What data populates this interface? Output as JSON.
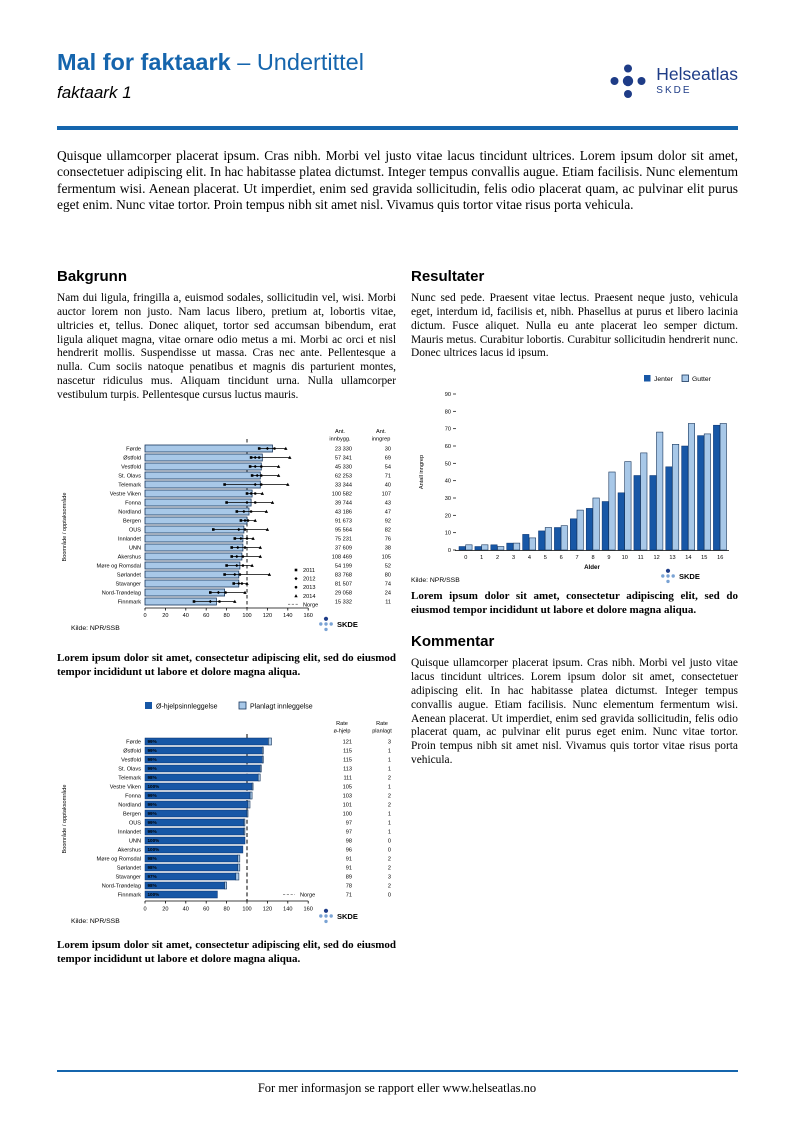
{
  "colors": {
    "accent_blue": "#1565ad",
    "logo_navy": "#1e3c87",
    "bar_dark": "#1757a6",
    "bar_light": "#a8c8e8",
    "bar_border": "#17365d",
    "skde_dot_light": "#7aa3d4"
  },
  "header": {
    "title": "Mal for faktaark",
    "subtitle": "– Undertittel",
    "subheading": "faktaark 1",
    "logo_name": "Helseatlas",
    "logo_org": "SKDE"
  },
  "skde_label": "SKDE",
  "intro": "Quisque ullamcorper placerat ipsum. Cras nibh. Morbi vel justo vitae lacus tincidunt ultrices. Lorem ipsum dolor sit amet, consectetuer adipiscing elit. In hac habitasse platea dictumst. Integer tempus convallis augue. Etiam facilisis. Nunc elementum fermentum wisi. Aenean placerat. Ut imperdiet, enim sed gravida sollicitudin, felis odio placerat quam, ac pulvinar elit purus eget enim. Nunc vitae tortor. Proin tempus nibh sit amet nisl. Vivamus quis tortor vitae risus porta vehicula.",
  "sections": {
    "bakgrunn": {
      "heading": "Bakgrunn",
      "body": "Nam dui ligula, fringilla a, euismod sodales, sollicitudin vel, wisi. Morbi auctor lorem non justo. Nam lacus libero, pretium at, lobortis vitae, ultricies et, tellus. Donec aliquet, tortor sed accumsan bibendum, erat ligula aliquet magna, vitae ornare odio metus a mi. Morbi ac orci et nisl hendrerit mollis. Suspendisse ut massa. Cras nec ante. Pellentesque a nulla. Cum sociis natoque penatibus et magnis dis parturient montes, nascetur ridiculus mus. Aliquam tincidunt urna. Nulla ullamcorper vestibulum turpis. Pellentesque cursus luctus mauris."
    },
    "resultater": {
      "heading": "Resultater",
      "body": "Nunc sed pede. Praesent vitae lectus. Praesent neque justo, vehicula eget, interdum id, facilisis et, nibh. Phasellus at purus et libero lacinia dictum. Fusce aliquet. Nulla eu ante placerat leo semper dictum. Mauris metus. Curabitur lobortis. Curabitur sollicitudin hendrerit nunc. Donec ultrices lacus id ipsum."
    },
    "kommentar": {
      "heading": "Kommentar",
      "body": "Quisque ullamcorper placerat ipsum. Cras nibh. Morbi vel justo vitae lacus tincidunt ultrices. Lorem ipsum dolor sit amet, consectetuer adipiscing elit. In hac habitasse platea dictumst. Integer tempus convallis augue. Etiam facilisis. Nunc elementum fermentum wisi. Aenean placerat. Ut imperdiet, enim sed gravida sollicitudin, felis odio placerat quam, ac pulvinar elit purus eget enim. Nunc vitae tortor. Proin tempus nibh sit amet nisl. Vivamus quis tortor vitae risus porta vehicula."
    }
  },
  "figures": {
    "fig1": {
      "caption": "Lorem ipsum dolor sit amet, consectetur adipiscing elit, sed do eiusmod tempor incididunt ut labore et dolore magna aliqua."
    },
    "fig2": {
      "caption": "Lorem ipsum dolor sit amet, consectetur adipiscing elit, sed do eiusmod tempor incididunt ut labore et dolore magna aliqua."
    },
    "fig3": {
      "caption": "Lorem ipsum dolor sit amet, consectetur adipiscing elit, sed do eiusmod tempor incididunt ut labore et dolore magna aliqua."
    }
  },
  "footer": {
    "text": "For mer informasjon se rapport eller www.helseatlas.no"
  },
  "chart_data": [
    {
      "id": "fig1",
      "type": "bar",
      "orientation": "horizontal",
      "ylabel": "Boområde / opptaksområde",
      "xlim": [
        0,
        160
      ],
      "xticks": [
        0,
        20,
        40,
        60,
        80,
        100,
        120,
        140,
        160
      ],
      "reference_line": {
        "label": "Norge",
        "value": 100
      },
      "legend": [
        "2011",
        "2012",
        "2013",
        "2014",
        "Norge"
      ],
      "table_headers": [
        [
          "Ant.",
          "innbygg."
        ],
        [
          "Ant.",
          "inngrep"
        ]
      ],
      "source": "Kilde: NPR/SSB",
      "rows": [
        {
          "label": "Førde",
          "value": 125,
          "year_points": [
            112,
            120,
            127,
            138
          ],
          "innbygg": "23 330",
          "inngrep": "30"
        },
        {
          "label": "Østfold",
          "value": 115,
          "year_points": [
            104,
            108,
            112,
            142
          ],
          "innbygg": "57 341",
          "inngrep": "69"
        },
        {
          "label": "Vestfold",
          "value": 114,
          "year_points": [
            103,
            108,
            114,
            131
          ],
          "innbygg": "45 330",
          "inngrep": "54"
        },
        {
          "label": "St. Olavs",
          "value": 113,
          "year_points": [
            105,
            110,
            114,
            131
          ],
          "innbygg": "62 253",
          "inngrep": "71"
        },
        {
          "label": "Telemark",
          "value": 113,
          "year_points": [
            78,
            108,
            114,
            140
          ],
          "innbygg": "33 344",
          "inngrep": "40"
        },
        {
          "label": "Vestre Viken",
          "value": 105,
          "year_points": [
            100,
            104,
            108,
            115
          ],
          "innbygg": "100 582",
          "inngrep": "107"
        },
        {
          "label": "Fonna",
          "value": 104,
          "year_points": [
            80,
            100,
            108,
            125
          ],
          "innbygg": "39 744",
          "inngrep": "43"
        },
        {
          "label": "Nordland",
          "value": 102,
          "year_points": [
            90,
            97,
            104,
            119
          ],
          "innbygg": "43 186",
          "inngrep": "47"
        },
        {
          "label": "Bergen",
          "value": 100,
          "year_points": [
            94,
            98,
            101,
            108
          ],
          "innbygg": "91 673",
          "inngrep": "92"
        },
        {
          "label": "OUS",
          "value": 97,
          "year_points": [
            67,
            92,
            98,
            120
          ],
          "innbygg": "95 564",
          "inngrep": "82"
        },
        {
          "label": "Innlandet",
          "value": 96,
          "year_points": [
            88,
            94,
            100,
            106
          ],
          "innbygg": "75 231",
          "inngrep": "76"
        },
        {
          "label": "UNN",
          "value": 96,
          "year_points": [
            85,
            91,
            98,
            113
          ],
          "innbygg": "37 609",
          "inngrep": "38"
        },
        {
          "label": "Akershus",
          "value": 95,
          "year_points": [
            85,
            90,
            96,
            113
          ],
          "innbygg": "108 469",
          "inngrep": "105"
        },
        {
          "label": "Møre og Romsdal",
          "value": 93,
          "year_points": [
            80,
            90,
            96,
            105
          ],
          "innbygg": "54 199",
          "inngrep": "52"
        },
        {
          "label": "Sørlandet",
          "value": 92,
          "year_points": [
            78,
            88,
            93,
            122
          ],
          "innbygg": "83 768",
          "inngrep": "80"
        },
        {
          "label": "Stavanger",
          "value": 92,
          "year_points": [
            87,
            92,
            95,
            100
          ],
          "innbygg": "81 507",
          "inngrep": "74"
        },
        {
          "label": "Nord-Trøndelag",
          "value": 78,
          "year_points": [
            64,
            72,
            79,
            98
          ],
          "innbygg": "29 058",
          "inngrep": "24"
        },
        {
          "label": "Finnmark",
          "value": 70,
          "year_points": [
            48,
            64,
            73,
            88
          ],
          "innbygg": "15 332",
          "inngrep": "11"
        }
      ]
    },
    {
      "id": "fig2",
      "type": "bar",
      "orientation": "vertical",
      "grouped": true,
      "xlabel": "Alder",
      "ylabel": "Antall inngrep",
      "ylim": [
        0,
        90
      ],
      "yticks": [
        0,
        10,
        20,
        30,
        40,
        50,
        60,
        70,
        80,
        90
      ],
      "categories": [
        "0",
        "1",
        "2",
        "3",
        "4",
        "5",
        "6",
        "7",
        "8",
        "9",
        "10",
        "11",
        "12",
        "13",
        "14",
        "15",
        "16"
      ],
      "series": [
        {
          "name": "Jenter",
          "values": [
            2,
            2,
            3,
            4,
            9,
            11,
            13,
            18,
            24,
            28,
            33,
            43,
            43,
            48,
            60,
            66,
            72
          ]
        },
        {
          "name": "Gutter",
          "values": [
            3,
            3,
            2,
            4,
            7,
            13,
            14,
            23,
            30,
            45,
            51,
            56,
            68,
            61,
            73,
            67,
            73
          ]
        }
      ],
      "source": "Kilde: NPR/SSB"
    },
    {
      "id": "fig3",
      "type": "bar",
      "orientation": "horizontal",
      "stacked": true,
      "ylabel": "Boområde / opptaksområde",
      "xlim": [
        0,
        160
      ],
      "xticks": [
        0,
        20,
        40,
        60,
        80,
        100,
        120,
        140,
        160
      ],
      "legend": [
        "Ø-hjelpsinnleggelse",
        "Planlagt innleggelse"
      ],
      "reference_line": {
        "label": "Norge",
        "value": 100
      },
      "table_headers": [
        [
          "Rate",
          "ø-hjelp"
        ],
        [
          "Rate",
          "planlagt"
        ]
      ],
      "source": "Kilde: NPR/SSB",
      "rows": [
        {
          "label": "Førde",
          "ohjelp": 121,
          "planlagt": 3,
          "pct": "99%"
        },
        {
          "label": "Østfold",
          "ohjelp": 115,
          "planlagt": 1,
          "pct": "99%"
        },
        {
          "label": "Vestfold",
          "ohjelp": 115,
          "planlagt": 1,
          "pct": "99%"
        },
        {
          "label": "St. Olavs",
          "ohjelp": 113,
          "planlagt": 1,
          "pct": "99%"
        },
        {
          "label": "Telemark",
          "ohjelp": 111,
          "planlagt": 2,
          "pct": "98%"
        },
        {
          "label": "Vestre Viken",
          "ohjelp": 105,
          "planlagt": 1,
          "pct": "100%"
        },
        {
          "label": "Fonna",
          "ohjelp": 103,
          "planlagt": 2,
          "pct": "99%"
        },
        {
          "label": "Nordland",
          "ohjelp": 101,
          "planlagt": 2,
          "pct": "99%"
        },
        {
          "label": "Bergen",
          "ohjelp": 100,
          "planlagt": 1,
          "pct": "99%"
        },
        {
          "label": "OUS",
          "ohjelp": 97,
          "planlagt": 1,
          "pct": "99%"
        },
        {
          "label": "Innlandet",
          "ohjelp": 97,
          "planlagt": 1,
          "pct": "99%"
        },
        {
          "label": "UNN",
          "ohjelp": 98,
          "planlagt": 0,
          "pct": "100%"
        },
        {
          "label": "Akershus",
          "ohjelp": 96,
          "planlagt": 0,
          "pct": "100%"
        },
        {
          "label": "Møre og Romsdal",
          "ohjelp": 91,
          "planlagt": 2,
          "pct": "98%"
        },
        {
          "label": "Sørlandet",
          "ohjelp": 91,
          "planlagt": 2,
          "pct": "98%"
        },
        {
          "label": "Stavanger",
          "ohjelp": 89,
          "planlagt": 3,
          "pct": "97%"
        },
        {
          "label": "Nord-Trøndelag",
          "ohjelp": 78,
          "planlagt": 2,
          "pct": "98%"
        },
        {
          "label": "Finnmark",
          "ohjelp": 71,
          "planlagt": 0,
          "pct": "100%"
        }
      ]
    }
  ]
}
